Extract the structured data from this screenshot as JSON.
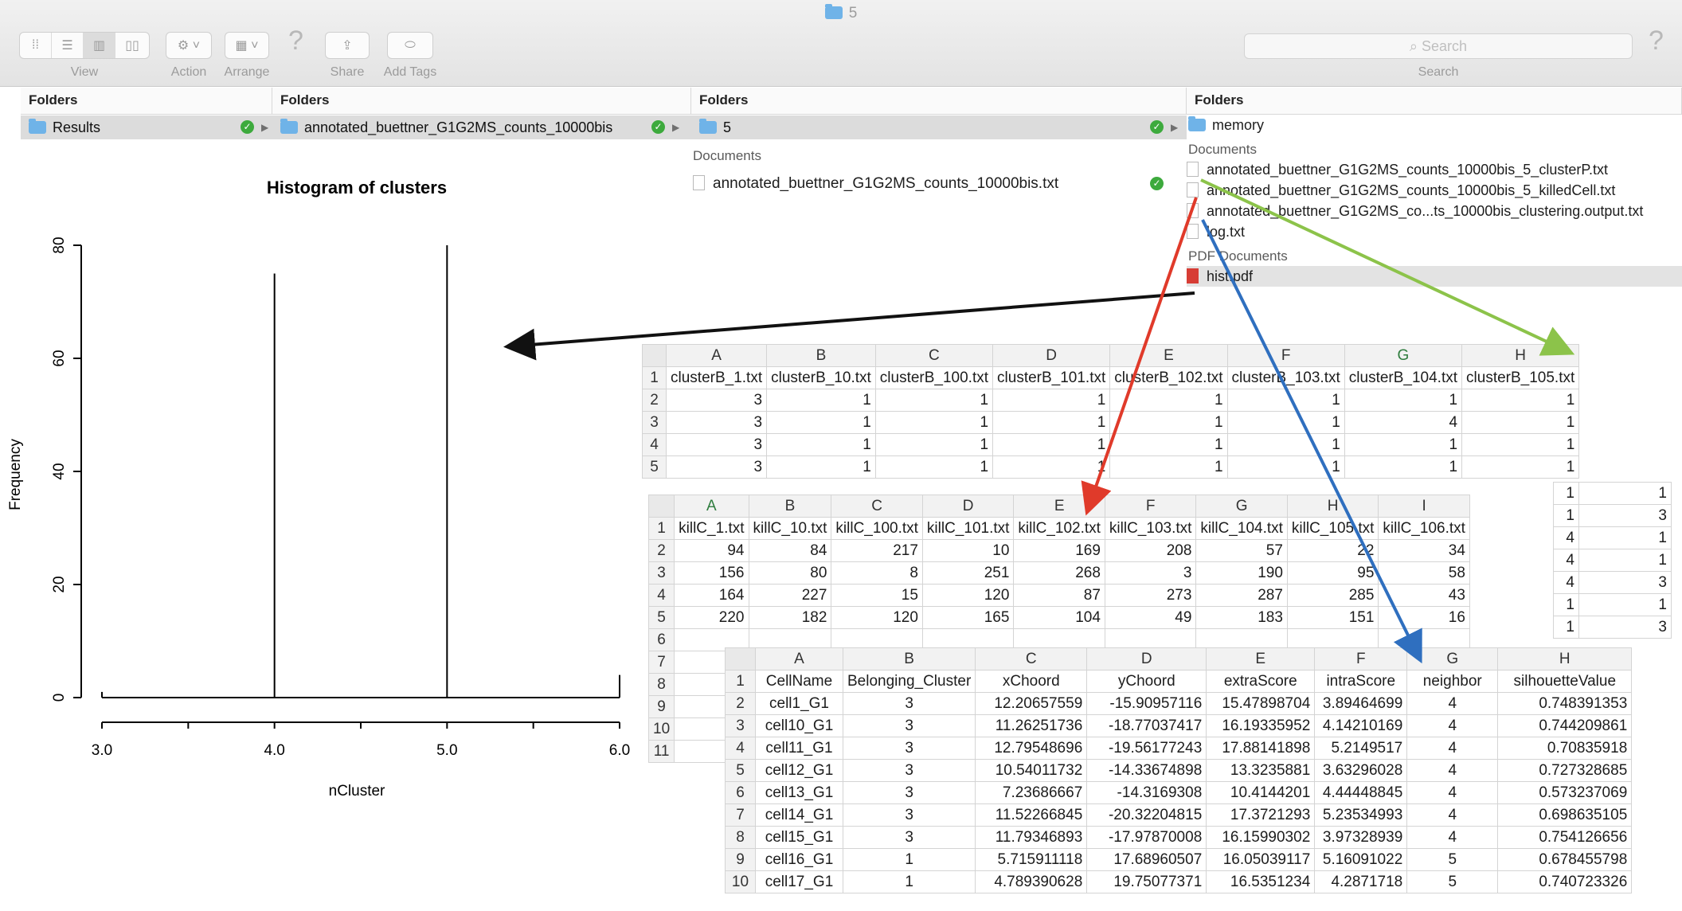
{
  "window": {
    "title": "5"
  },
  "toolbar": {
    "view_label": "View",
    "action_label": "Action",
    "arrange_label": "Arrange",
    "share_label": "Share",
    "add_tags_label": "Add Tags",
    "search_placeholder": "Search",
    "search_label": "Search",
    "help_glyph": "?"
  },
  "browser": {
    "columns": [
      {
        "header": "Folders",
        "selected": "Results"
      },
      {
        "header": "Folders",
        "selected": "annotated_buettner_G1G2MS_counts_10000bis"
      },
      {
        "header": "Folders",
        "selected": "5",
        "documents_header": "Documents",
        "documents": [
          "annotated_buettner_G1G2MS_counts_10000bis.txt"
        ]
      },
      {
        "header": "Folders",
        "folders": [
          "memory"
        ],
        "documents_header": "Documents",
        "documents": [
          "annotated_buettner_G1G2MS_counts_10000bis_5_clusterP.txt",
          "annotated_buettner_G1G2MS_counts_10000bis_5_killedCell.txt",
          "annotated_buettner_G1G2MS_co...ts_10000bis_clustering.output.txt",
          "log.txt"
        ],
        "pdf_header": "PDF Documents",
        "pdf": [
          "hist.pdf"
        ]
      }
    ]
  },
  "chart_data": {
    "type": "bar",
    "title": "Histogram of clusters",
    "xlabel": "nCluster",
    "ylabel": "Frequency",
    "x": [
      3.0,
      4.0,
      5.0,
      6.0
    ],
    "values": [
      1,
      75,
      80,
      4
    ],
    "xlim": [
      3.0,
      6.0
    ],
    "ylim": [
      0,
      80
    ],
    "xticks": [
      "3.0",
      "4.0",
      "5.0",
      "6.0"
    ],
    "yticks": [
      "0",
      "20",
      "40",
      "60",
      "80"
    ]
  },
  "sheet_cluster": {
    "columns": [
      "A",
      "B",
      "C",
      "D",
      "E",
      "F",
      "G",
      "H"
    ],
    "rows": [
      [
        "1",
        "clusterB_1.txt",
        "clusterB_10.txt",
        "clusterB_100.txt",
        "clusterB_101.txt",
        "clusterB_102.txt",
        "clusterB_103.txt",
        "clusterB_104.txt",
        "clusterB_105.txt"
      ],
      [
        "2",
        "3",
        "1",
        "1",
        "1",
        "1",
        "1",
        "1",
        "1"
      ],
      [
        "3",
        "3",
        "1",
        "1",
        "1",
        "1",
        "1",
        "4",
        "1"
      ],
      [
        "4",
        "3",
        "1",
        "1",
        "1",
        "1",
        "1",
        "1",
        "1"
      ],
      [
        "5",
        "3",
        "1",
        "1",
        "1",
        "1",
        "1",
        "1",
        "1"
      ]
    ],
    "extra_h": [
      "1",
      "3",
      "1",
      "1",
      "3",
      "1",
      "3"
    ],
    "extra_g": [
      "1",
      "1",
      "4",
      "4",
      "4",
      "1",
      "1"
    ]
  },
  "sheet_killed": {
    "columns": [
      "A",
      "B",
      "C",
      "D",
      "E",
      "F",
      "G",
      "H",
      "I"
    ],
    "rows": [
      [
        "1",
        "killC_1.txt",
        "killC_10.txt",
        "killC_100.txt",
        "killC_101.txt",
        "killC_102.txt",
        "killC_103.txt",
        "killC_104.txt",
        "killC_105.txt",
        "killC_106.txt"
      ],
      [
        "2",
        "94",
        "84",
        "217",
        "10",
        "169",
        "208",
        "57",
        "22",
        "34"
      ],
      [
        "3",
        "156",
        "80",
        "8",
        "251",
        "268",
        "3",
        "190",
        "95",
        "58"
      ],
      [
        "4",
        "164",
        "227",
        "15",
        "120",
        "87",
        "273",
        "287",
        "285",
        "43"
      ],
      [
        "5",
        "220",
        "182",
        "120",
        "165",
        "104",
        "49",
        "183",
        "151",
        "16"
      ],
      [
        "6",
        "",
        "",
        "",
        "",
        "",
        "",
        "",
        "",
        ""
      ],
      [
        "7",
        "",
        "",
        "",
        "",
        "",
        "",
        "",
        "",
        ""
      ],
      [
        "8",
        "",
        "",
        "",
        "",
        "",
        "",
        "",
        "",
        ""
      ],
      [
        "9",
        "",
        "",
        "",
        "",
        "",
        "",
        "",
        "",
        ""
      ],
      [
        "10",
        "",
        "",
        "",
        "",
        "",
        "",
        "",
        "",
        ""
      ],
      [
        "11",
        "",
        "",
        "",
        "",
        "",
        "",
        "",
        "",
        ""
      ]
    ]
  },
  "sheet_output": {
    "columns": [
      "A",
      "B",
      "C",
      "D",
      "E",
      "F",
      "G",
      "H"
    ],
    "rows": [
      [
        "1",
        "CellName",
        "Belonging_Cluster",
        "xChoord",
        "yChoord",
        "extraScore",
        "intraScore",
        "neighbor",
        "silhouetteValue"
      ],
      [
        "2",
        "cell1_G1",
        "3",
        "12.20657559",
        "-15.90957116",
        "15.47898704",
        "3.89464699",
        "4",
        "0.748391353"
      ],
      [
        "3",
        "cell10_G1",
        "3",
        "11.26251736",
        "-18.77037417",
        "16.19335952",
        "4.14210169",
        "4",
        "0.744209861"
      ],
      [
        "4",
        "cell11_G1",
        "3",
        "12.79548696",
        "-19.56177243",
        "17.88141898",
        "5.2149517",
        "4",
        "0.70835918"
      ],
      [
        "5",
        "cell12_G1",
        "3",
        "10.54011732",
        "-14.33674898",
        "13.3235881",
        "3.63296028",
        "4",
        "0.727328685"
      ],
      [
        "6",
        "cell13_G1",
        "3",
        "7.23686667",
        "-14.3169308",
        "10.4144201",
        "4.44448845",
        "4",
        "0.573237069"
      ],
      [
        "7",
        "cell14_G1",
        "3",
        "11.52266845",
        "-20.32204815",
        "17.3721293",
        "5.23534993",
        "4",
        "0.698635105"
      ],
      [
        "8",
        "cell15_G1",
        "3",
        "11.79346893",
        "-17.97870008",
        "16.15990302",
        "3.97328939",
        "4",
        "0.754126656"
      ],
      [
        "9",
        "cell16_G1",
        "1",
        "5.715911118",
        "17.68960507",
        "16.05039117",
        "5.16091022",
        "5",
        "0.678455798"
      ],
      [
        "10",
        "cell17_G1",
        "1",
        "4.789390628",
        "19.75077371",
        "16.5351234",
        "4.2871718",
        "5",
        "0.740723326"
      ]
    ]
  },
  "colors": {
    "arrow_black": "#111111",
    "arrow_red": "#e03a2a",
    "arrow_green": "#8cc34a",
    "arrow_blue": "#2f6fbf",
    "folder": "#6fb3e8",
    "check": "#3daa3d"
  }
}
